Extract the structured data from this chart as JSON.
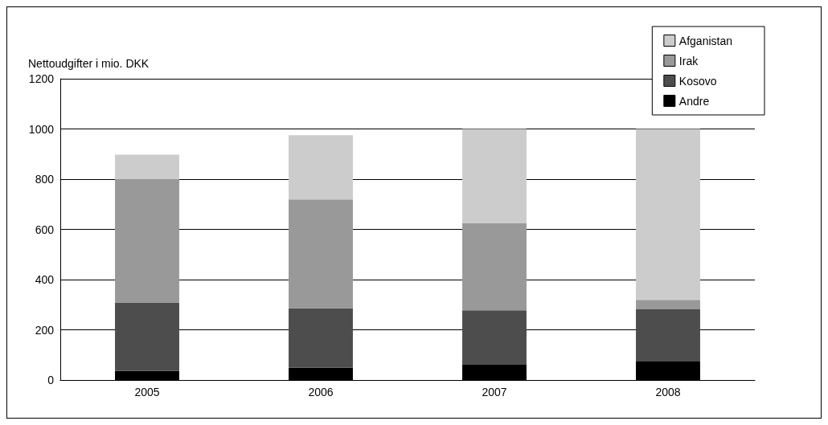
{
  "chart_data": {
    "type": "bar",
    "stacked": true,
    "ylabel": "Nettoudgifter i mio. DKK",
    "categories": [
      "2005",
      "2006",
      "2007",
      "2008"
    ],
    "series": [
      {
        "name": "Andre",
        "color": "#000000",
        "values": [
          36,
          49,
          61,
          74
        ]
      },
      {
        "name": "Kosovo",
        "color": "#4d4d4d",
        "values": [
          273,
          237,
          217,
          208
        ]
      },
      {
        "name": "Irak",
        "color": "#999999",
        "values": [
          491,
          433,
          348,
          37
        ]
      },
      {
        "name": "Afganistan",
        "color": "#cccccc",
        "values": [
          98,
          256,
          374,
          681
        ]
      }
    ],
    "ylim": [
      0,
      1200
    ],
    "yticks": [
      0,
      200,
      400,
      600,
      800,
      1000,
      1200
    ],
    "grid": "y",
    "legend": "top right"
  }
}
